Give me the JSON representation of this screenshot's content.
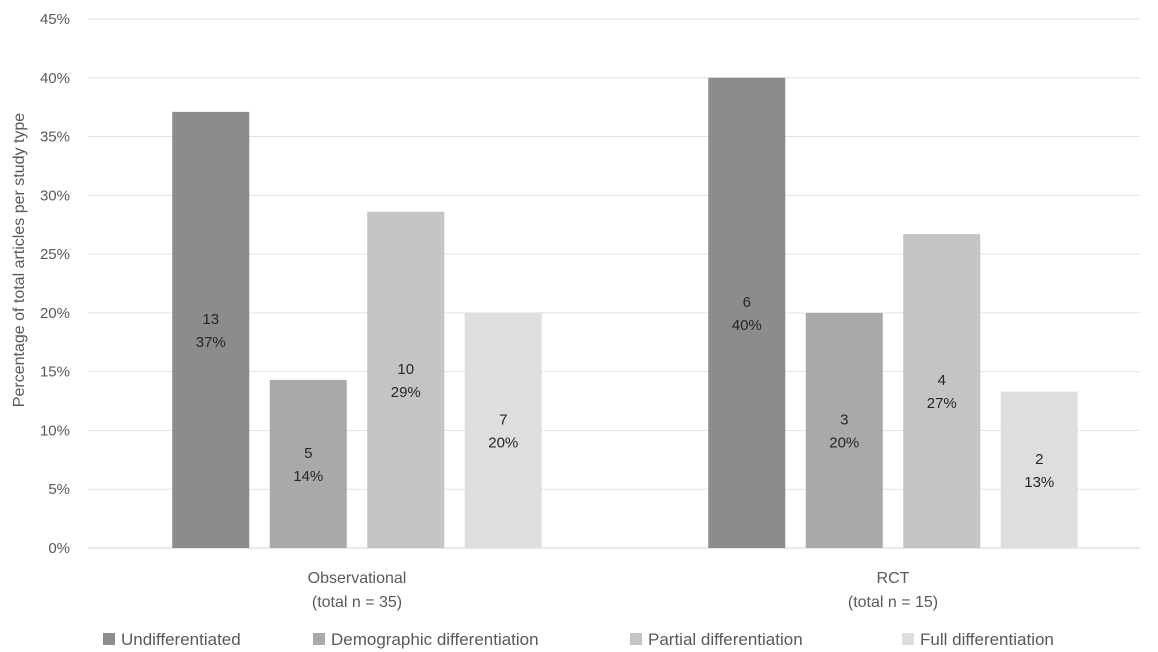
{
  "chart_data": {
    "type": "bar",
    "title": "",
    "xlabel": "",
    "ylabel": "Percentage of total articles per study type",
    "ylim": [
      0,
      45
    ],
    "y_ticks": [
      "0%",
      "5%",
      "10%",
      "15%",
      "20%",
      "25%",
      "30%",
      "35%",
      "40%",
      "45%"
    ],
    "y_tick_values": [
      0,
      5,
      10,
      15,
      20,
      25,
      30,
      35,
      40,
      45
    ],
    "grid": true,
    "legend_position": "bottom",
    "categories": [
      {
        "line1": "Observational",
        "line2": "(total n = 35)"
      },
      {
        "line1": "RCT",
        "line2": "(total n = 15)"
      }
    ],
    "series": [
      {
        "name": "Undifferentiated",
        "color": "#8c8c8e",
        "values": [
          37.1,
          40.0
        ],
        "counts": [
          "13",
          "6"
        ],
        "labels": [
          "37%",
          "40%"
        ]
      },
      {
        "name": "Demographic differentiation",
        "color": "#a9a9ab",
        "values": [
          14.3,
          20.0
        ],
        "counts": [
          "5",
          "3"
        ],
        "labels": [
          "14%",
          "20%"
        ]
      },
      {
        "name": "Partial differentiation",
        "color": "#c4c4c5",
        "values": [
          28.6,
          26.7
        ],
        "counts": [
          "10",
          "4"
        ],
        "labels": [
          "29%",
          "27%"
        ]
      },
      {
        "name": "Full differentiation",
        "color": "#dededf",
        "values": [
          20.0,
          13.3
        ],
        "counts": [
          "7",
          "2"
        ],
        "labels": [
          "20%",
          "13%"
        ]
      }
    ]
  }
}
